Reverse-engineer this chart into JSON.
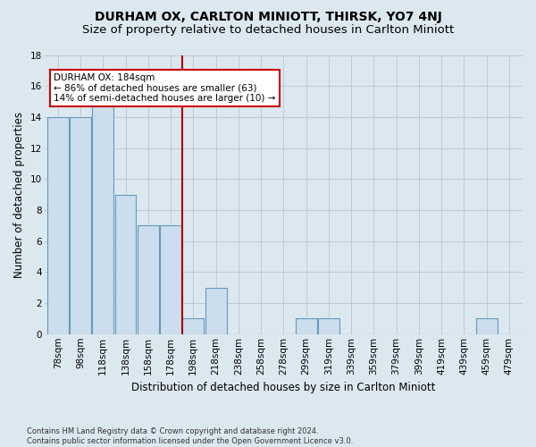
{
  "title": "DURHAM OX, CARLTON MINIOTT, THIRSK, YO7 4NJ",
  "subtitle": "Size of property relative to detached houses in Carlton Miniott",
  "xlabel": "Distribution of detached houses by size in Carlton Miniott",
  "ylabel": "Number of detached properties",
  "footer_line1": "Contains HM Land Registry data © Crown copyright and database right 2024.",
  "footer_line2": "Contains public sector information licensed under the Open Government Licence v3.0.",
  "bin_labels": [
    "78sqm",
    "98sqm",
    "118sqm",
    "138sqm",
    "158sqm",
    "178sqm",
    "198sqm",
    "218sqm",
    "238sqm",
    "258sqm",
    "278sqm",
    "299sqm",
    "319sqm",
    "339sqm",
    "359sqm",
    "379sqm",
    "399sqm",
    "419sqm",
    "439sqm",
    "459sqm",
    "479sqm"
  ],
  "bar_values": [
    14,
    14,
    15,
    9,
    7,
    7,
    1,
    3,
    0,
    0,
    0,
    1,
    1,
    0,
    0,
    0,
    0,
    0,
    0,
    1,
    0
  ],
  "bar_color": "#ccdded",
  "bar_edge_color": "#6699bb",
  "vline_x": 5.5,
  "vline_color": "#aa0000",
  "annotation_box_text": "DURHAM OX: 184sqm\n← 86% of detached houses are smaller (63)\n14% of semi-detached houses are larger (10) →",
  "annotation_box_color": "#cc0000",
  "annotation_box_fill": "white",
  "ylim": [
    0,
    18
  ],
  "yticks": [
    0,
    2,
    4,
    6,
    8,
    10,
    12,
    14,
    16,
    18
  ],
  "grid_color": "#c0c8d8",
  "bg_color": "#dce8f0",
  "title_fontsize": 10,
  "subtitle_fontsize": 9.5,
  "axis_label_fontsize": 8.5,
  "tick_fontsize": 7.5,
  "ann_fontsize": 7.5
}
